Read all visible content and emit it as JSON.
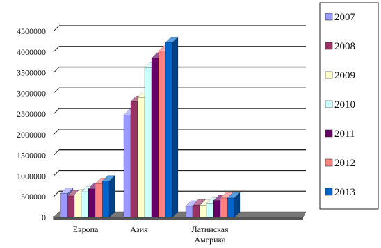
{
  "chart_data": {
    "type": "bar",
    "title": "",
    "xlabel": "",
    "ylabel": "",
    "categories": [
      "Европа",
      "Азия",
      "Латинская Америка",
      ""
    ],
    "category_lines": [
      [
        "Европа"
      ],
      [
        "Азия"
      ],
      [
        "Латинская",
        "Америка"
      ],
      []
    ],
    "ylim": [
      0,
      4500000
    ],
    "yticks": [
      0,
      500000,
      1000000,
      1500000,
      2000000,
      2500000,
      3000000,
      3500000,
      4000000,
      4500000
    ],
    "ytick_labels": [
      "0",
      "500000",
      "1000000",
      "1500000",
      "2000000",
      "2500000",
      "3000000",
      "3500000",
      "4000000",
      "4500000"
    ],
    "grid": true,
    "legend_position": "right",
    "series": [
      {
        "name": "2007",
        "color": "#9999ff",
        "values": [
          580000,
          2480000,
          270000,
          0
        ]
      },
      {
        "name": "2008",
        "color": "#993366",
        "values": [
          520000,
          2800000,
          300000,
          0
        ]
      },
      {
        "name": "2009",
        "color": "#ffffcc",
        "values": [
          550000,
          2900000,
          290000,
          0
        ]
      },
      {
        "name": "2010",
        "color": "#ccffff",
        "values": [
          620000,
          3620000,
          340000,
          0
        ]
      },
      {
        "name": "2011",
        "color": "#660066",
        "values": [
          690000,
          3850000,
          410000,
          0
        ]
      },
      {
        "name": "2012",
        "color": "#ff8080",
        "values": [
          820000,
          4020000,
          470000,
          0
        ]
      },
      {
        "name": "2013",
        "color": "#0066cc",
        "values": [
          880000,
          4230000,
          470000,
          0
        ]
      }
    ]
  }
}
